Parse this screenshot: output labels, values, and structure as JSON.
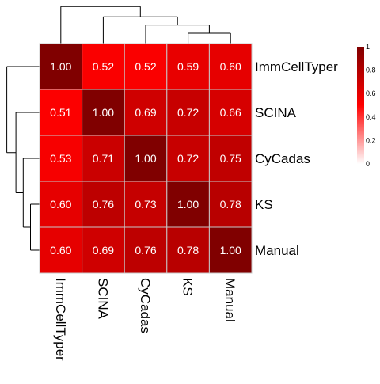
{
  "chart_data": {
    "type": "heatmap",
    "title": "",
    "rows": [
      "ImmCellTyper",
      "SCINA",
      "CyCadas",
      "KS",
      "Manual"
    ],
    "cols": [
      "ImmCellTyper",
      "SCINA",
      "CyCadas",
      "KS",
      "Manual"
    ],
    "values": [
      [
        1.0,
        0.52,
        0.52,
        0.59,
        0.6
      ],
      [
        0.51,
        1.0,
        0.69,
        0.72,
        0.66
      ],
      [
        0.53,
        0.71,
        1.0,
        0.72,
        0.75
      ],
      [
        0.6,
        0.76,
        0.73,
        1.0,
        0.78
      ],
      [
        0.6,
        0.69,
        0.76,
        0.78,
        1.0
      ]
    ],
    "value_format": "0.00",
    "color_scale": {
      "min": 0,
      "max": 1,
      "stops": [
        "#ffffff",
        "#ff0000",
        "#800000"
      ]
    },
    "legend": {
      "placement": "right",
      "ticks": [
        "0",
        "0.2",
        "0.4",
        "0.6",
        "0.8",
        "1"
      ],
      "tick_values": [
        0,
        0.2,
        0.4,
        0.6,
        0.8,
        1
      ]
    },
    "dendrogram_row": "left",
    "dendrogram_col": "top"
  },
  "colors": {
    "cell_border": "#c8c8c8",
    "cell_text": "#ffffff",
    "label_text": "#000000",
    "tree_line": "#000000"
  }
}
